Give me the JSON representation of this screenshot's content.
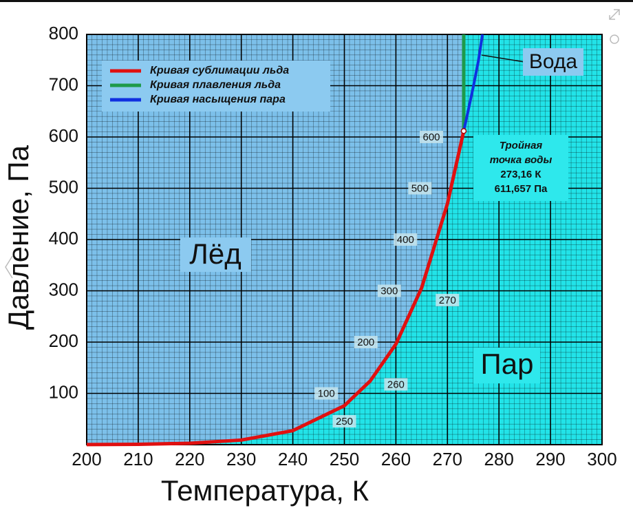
{
  "chart_data": {
    "type": "line",
    "xlabel": "Температура, К",
    "ylabel": "Давление, Па",
    "xlim": [
      200,
      300
    ],
    "xticks": [
      200,
      210,
      220,
      230,
      240,
      250,
      260,
      270,
      280,
      290,
      300
    ],
    "ylim": [
      0,
      800
    ],
    "yticks": [
      100,
      200,
      300,
      400,
      500,
      600,
      700,
      800
    ],
    "grid": true,
    "minor_grid": {
      "x": 1,
      "y": 10
    },
    "legend": "upper left",
    "region_colors": {
      "ice": "#7cc0ea",
      "vapor": "#22e3e8"
    },
    "series": [
      {
        "name": "Кривая сублимации льда",
        "color": "#e01010",
        "x": [
          200,
          210,
          220,
          230,
          240,
          250,
          255,
          260,
          265,
          270,
          273.16
        ],
        "values": [
          0.16,
          0.7,
          2.65,
          8.97,
          27.3,
          76,
          124,
          196,
          306,
          470,
          611.657
        ]
      },
      {
        "name": "Кривая плавления льда",
        "color": "#1e9a4a",
        "x": [
          273.16,
          273.16
        ],
        "values": [
          611.657,
          800
        ]
      },
      {
        "name": "Кривая насыщения пара",
        "color": "#1030e0",
        "x": [
          273.16,
          274,
          275,
          276,
          276.8
        ],
        "values": [
          611.657,
          650,
          697,
          748,
          800
        ]
      }
    ],
    "pressure_labels": [
      100,
      200,
      300,
      400,
      500,
      600
    ],
    "temperature_labels": [
      250,
      260,
      270
    ],
    "annotations": {
      "ice": "Лёд",
      "vapor": "Пар",
      "water": "Вода"
    },
    "triple_point": {
      "x": 273.16,
      "y": 611.657,
      "lines": [
        "Тройная",
        "точка воды",
        "273,16 К",
        "611,657 Па"
      ]
    }
  }
}
